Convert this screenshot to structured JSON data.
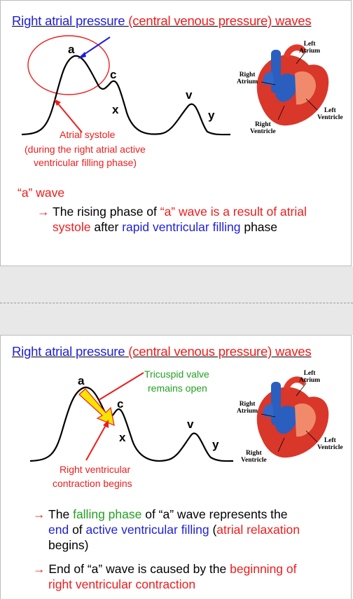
{
  "slide1": {
    "title_part1": "Right atrial pressure ",
    "title_part2": "(central venous pressure) waves",
    "wave_labels": {
      "a": "a",
      "c": "c",
      "x": "x",
      "v": "v",
      "y": "y"
    },
    "annotation_line1": "Atrial systole",
    "annotation_line2": "(during the right atrial active",
    "annotation_line3": "ventricular filling phase)",
    "heart_labels": {
      "left_atrium_1": "Left",
      "left_atrium_2": "Atrium",
      "right_atrium_1": "Right",
      "right_atrium_2": "Atrium",
      "right_ventricle_1": "Right",
      "right_ventricle_2": "Ventricle",
      "left_ventricle_1": "Left",
      "left_ventricle_2": "Ventricle"
    },
    "section_heading": "“a” wave",
    "bullet1": {
      "arrow": "→",
      "p1": "The rising phase of ",
      "p2": "“a” wave is a result of atrial",
      "p3": "systole",
      "p4": " after ",
      "p5": "rapid ventricular filling",
      "p6": " phase"
    }
  },
  "slide2": {
    "title_part1": "Right atrial pressure ",
    "title_part2": "(central venous pressure) waves",
    "wave_labels": {
      "a": "a",
      "c": "c",
      "x": "x",
      "v": "v",
      "y": "y"
    },
    "valve_line1": "Tricuspid valve",
    "valve_line2": "remains open",
    "contraction_line1": "Right ventricular",
    "contraction_line2": "contraction begins",
    "heart_labels": {
      "left_atrium_1": "Left",
      "left_atrium_2": "Atrium",
      "right_atrium_1": "Right",
      "right_atrium_2": "Atrium",
      "right_ventricle_1": "Right",
      "right_ventricle_2": "Ventricle",
      "left_ventricle_1": "Left",
      "left_ventricle_2": "Ventricle"
    },
    "bullet1": {
      "arrow": "→",
      "p1": "The ",
      "p2": "falling phase",
      "p3": " of “a” wave represents the",
      "p4": "end",
      "p5": " of ",
      "p6": "active ventricular filling",
      "p7": " (",
      "p8": "atrial relaxation",
      "p9": "begins)"
    },
    "bullet2": {
      "arrow": "→",
      "p1": "End of “a” wave is caused by the ",
      "p2": "beginning of",
      "p3": "right ventricular contraction"
    }
  },
  "colors": {
    "blue": "#1f1fd6",
    "red": "#ee1c1c",
    "green": "#22a022",
    "yellow": "#f7e400"
  }
}
